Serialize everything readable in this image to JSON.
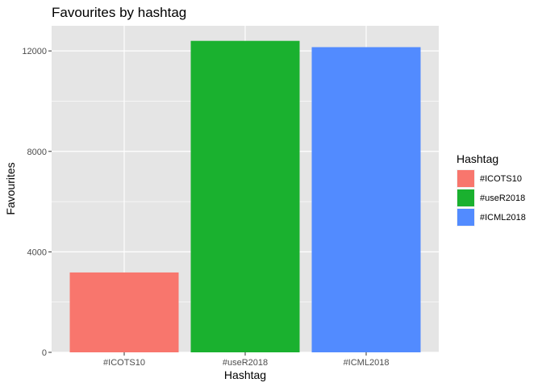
{
  "chart_data": {
    "type": "bar",
    "title": "Favourites by hashtag",
    "xlabel": "Hashtag",
    "ylabel": "Favourites",
    "categories": [
      "#ICOTS10",
      "#useR2018",
      "#ICML2018"
    ],
    "values": [
      3180,
      12400,
      12150
    ],
    "colors": [
      "#F8766D",
      "#1AB12F",
      "#528BFF"
    ],
    "ylim": [
      0,
      13000
    ],
    "yticks": [
      0,
      4000,
      8000,
      12000
    ],
    "grid": true,
    "panel_background": "#E5E5E5",
    "legend": {
      "title": "Hashtag",
      "placement": "right",
      "entries": [
        "#ICOTS10",
        "#useR2018",
        "#ICML2018"
      ]
    }
  }
}
